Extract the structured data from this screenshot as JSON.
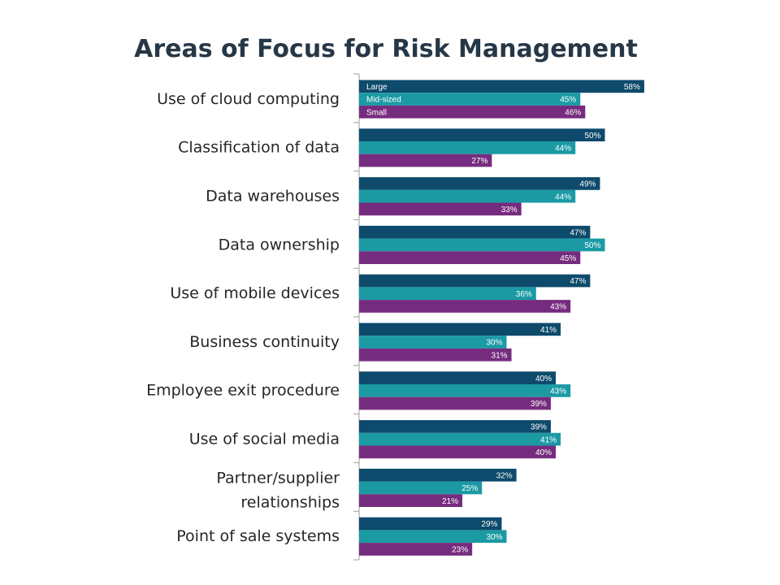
{
  "chart_data": {
    "type": "bar",
    "orientation": "horizontal",
    "title": "Areas of Focus for Risk Management",
    "categories": [
      "Use of cloud computing",
      "Classification of data",
      "Data warehouses",
      "Data ownership",
      "Use of mobile devices",
      "Business continuity",
      "Employee exit procedure",
      "Use of social media",
      "Partner/supplier relationships",
      "Point of sale systems"
    ],
    "series": [
      {
        "name": "Large",
        "color": "#0d4a6b",
        "values": [
          58,
          50,
          49,
          47,
          47,
          41,
          40,
          39,
          32,
          29
        ]
      },
      {
        "name": "Mid-sized",
        "color": "#1b9aa4",
        "values": [
          45,
          44,
          44,
          50,
          36,
          30,
          43,
          41,
          25,
          30
        ]
      },
      {
        "name": "Small",
        "color": "#762c7e",
        "values": [
          46,
          27,
          33,
          45,
          43,
          31,
          39,
          40,
          21,
          23
        ]
      }
    ],
    "value_suffix": "%",
    "legend_position": "inside-first-category",
    "grid": false,
    "xlim": [
      0,
      60
    ]
  }
}
